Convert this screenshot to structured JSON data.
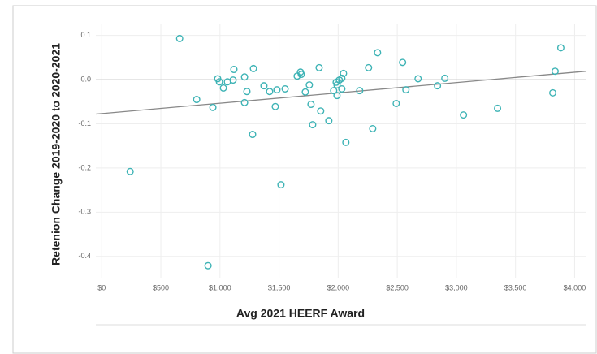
{
  "chart_data": {
    "type": "scatter",
    "x_label": "Avg 2021 HEERF Award",
    "y_label": "Retenion Change 2019-2020 to 2020-2021",
    "color": "#3db3b5",
    "trend_color": "#888888",
    "grid": true,
    "xlim": [
      -50,
      4100
    ],
    "ylim": [
      -0.45,
      0.125
    ],
    "xticks": [
      {
        "value": 0,
        "label": "$0"
      },
      {
        "value": 500,
        "label": "$500"
      },
      {
        "value": 1000,
        "label": "$1,000"
      },
      {
        "value": 1500,
        "label": "$1,500"
      },
      {
        "value": 2000,
        "label": "$2,000"
      },
      {
        "value": 2500,
        "label": "$2,500"
      },
      {
        "value": 3000,
        "label": "$3,000"
      },
      {
        "value": 3500,
        "label": "$3,500"
      },
      {
        "value": 4000,
        "label": "$4,000"
      }
    ],
    "yticks": [
      0.1,
      {
        "value": 0,
        "label": "0.0"
      },
      -0.1,
      -0.2,
      -0.3,
      -0.4
    ],
    "trendline": {
      "x": [
        -50,
        4100
      ],
      "y": [
        -0.078,
        0.019
      ]
    },
    "x": [
      240,
      659,
      803,
      899,
      940,
      981,
      995,
      1029,
      1063,
      1111,
      1118,
      1208,
      1208,
      1228,
      1276,
      1283,
      1372,
      1420,
      1468,
      1482,
      1516,
      1551,
      1653,
      1681,
      1688,
      1722,
      1756,
      1770,
      1784,
      1839,
      1852,
      1921,
      1962,
      1983,
      1990,
      1990,
      2010,
      2031,
      2031,
      2045,
      2065,
      2182,
      2257,
      2292,
      2333,
      2491,
      2545,
      2573,
      2676,
      2840,
      2902,
      3060,
      3348,
      3815,
      3835,
      3883
    ],
    "values": [
      -0.208,
      0.093,
      -0.045,
      -0.421,
      -0.063,
      0.002,
      -0.005,
      -0.019,
      -0.005,
      -0.001,
      0.023,
      0.006,
      -0.052,
      -0.027,
      -0.124,
      0.025,
      -0.014,
      -0.027,
      -0.061,
      -0.023,
      -0.238,
      -0.021,
      0.008,
      0.017,
      0.012,
      -0.028,
      -0.012,
      -0.056,
      -0.102,
      0.027,
      -0.071,
      -0.093,
      -0.025,
      -0.006,
      -0.012,
      -0.036,
      -0.001,
      0.003,
      -0.021,
      0.014,
      -0.142,
      -0.025,
      0.027,
      -0.111,
      0.061,
      -0.054,
      0.039,
      -0.023,
      0.002,
      -0.014,
      0.003,
      -0.08,
      -0.065,
      -0.03,
      0.019,
      0.072
    ]
  }
}
